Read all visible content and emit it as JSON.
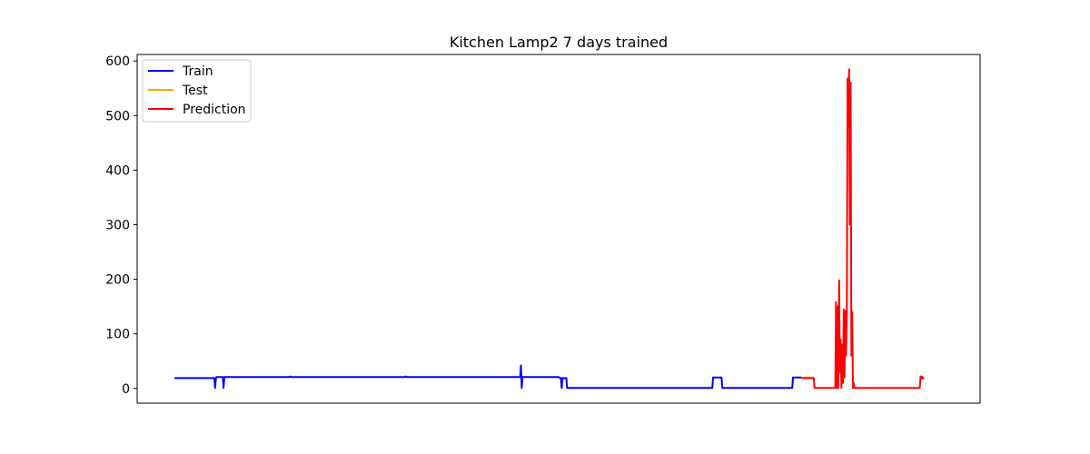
{
  "chart_data": {
    "type": "line",
    "title": "Kitchen Lamp2 7 days trained",
    "xlabel": "",
    "ylabel": "",
    "x_ticks_shown": false,
    "xlim": [
      0,
      1000
    ],
    "ylim": [
      -27,
      612
    ],
    "y_ticks": [
      0,
      100,
      200,
      300,
      400,
      500,
      600
    ],
    "legend_position": "top-left",
    "grid": false,
    "series": [
      {
        "name": "Train",
        "color": "#0000ff",
        "points": [
          [
            0,
            19
          ],
          [
            52,
            19
          ],
          [
            53,
            1
          ],
          [
            54,
            19
          ],
          [
            55,
            21
          ],
          [
            63,
            21
          ],
          [
            64,
            1
          ],
          [
            65,
            21
          ],
          [
            150,
            21
          ],
          [
            151,
            22
          ],
          [
            152,
            21
          ],
          [
            300,
            21
          ],
          [
            301,
            22
          ],
          [
            302,
            21
          ],
          [
            450,
            21
          ],
          [
            451,
            42
          ],
          [
            452,
            1
          ],
          [
            453,
            21
          ],
          [
            500,
            21
          ],
          [
            501,
            20
          ],
          [
            503,
            19
          ],
          [
            504,
            1
          ],
          [
            505,
            19
          ],
          [
            510,
            19
          ],
          [
            511,
            1
          ],
          [
            700,
            1
          ],
          [
            701,
            20
          ],
          [
            712,
            20
          ],
          [
            713,
            1
          ],
          [
            804,
            1
          ],
          [
            805,
            20
          ],
          [
            816,
            20
          ]
        ]
      },
      {
        "name": "Test",
        "color": "#ffa500",
        "points": [
          [
            816,
            20
          ],
          [
            832,
            20
          ]
        ]
      },
      {
        "name": "Prediction",
        "color": "#ff0000",
        "points": [
          [
            816,
            19
          ],
          [
            832,
            19
          ],
          [
            833,
            1
          ],
          [
            860,
            1
          ],
          [
            861,
            158
          ],
          [
            862,
            1
          ],
          [
            863,
            150
          ],
          [
            864,
            1
          ],
          [
            865,
            198
          ],
          [
            866,
            30
          ],
          [
            867,
            90
          ],
          [
            868,
            1
          ],
          [
            869,
            80
          ],
          [
            870,
            10
          ],
          [
            871,
            145
          ],
          [
            872,
            20
          ],
          [
            873,
            142
          ],
          [
            874,
            60
          ],
          [
            875,
            140
          ],
          [
            876,
            568
          ],
          [
            877,
            480
          ],
          [
            878,
            585
          ],
          [
            879,
            300
          ],
          [
            880,
            560
          ],
          [
            881,
            60
          ],
          [
            882,
            140
          ],
          [
            883,
            1
          ],
          [
            884,
            10
          ],
          [
            885,
            1
          ],
          [
            970,
            1
          ],
          [
            971,
            22
          ],
          [
            972,
            18
          ],
          [
            973,
            22
          ],
          [
            974,
            18
          ],
          [
            975,
            21
          ]
        ]
      }
    ]
  }
}
